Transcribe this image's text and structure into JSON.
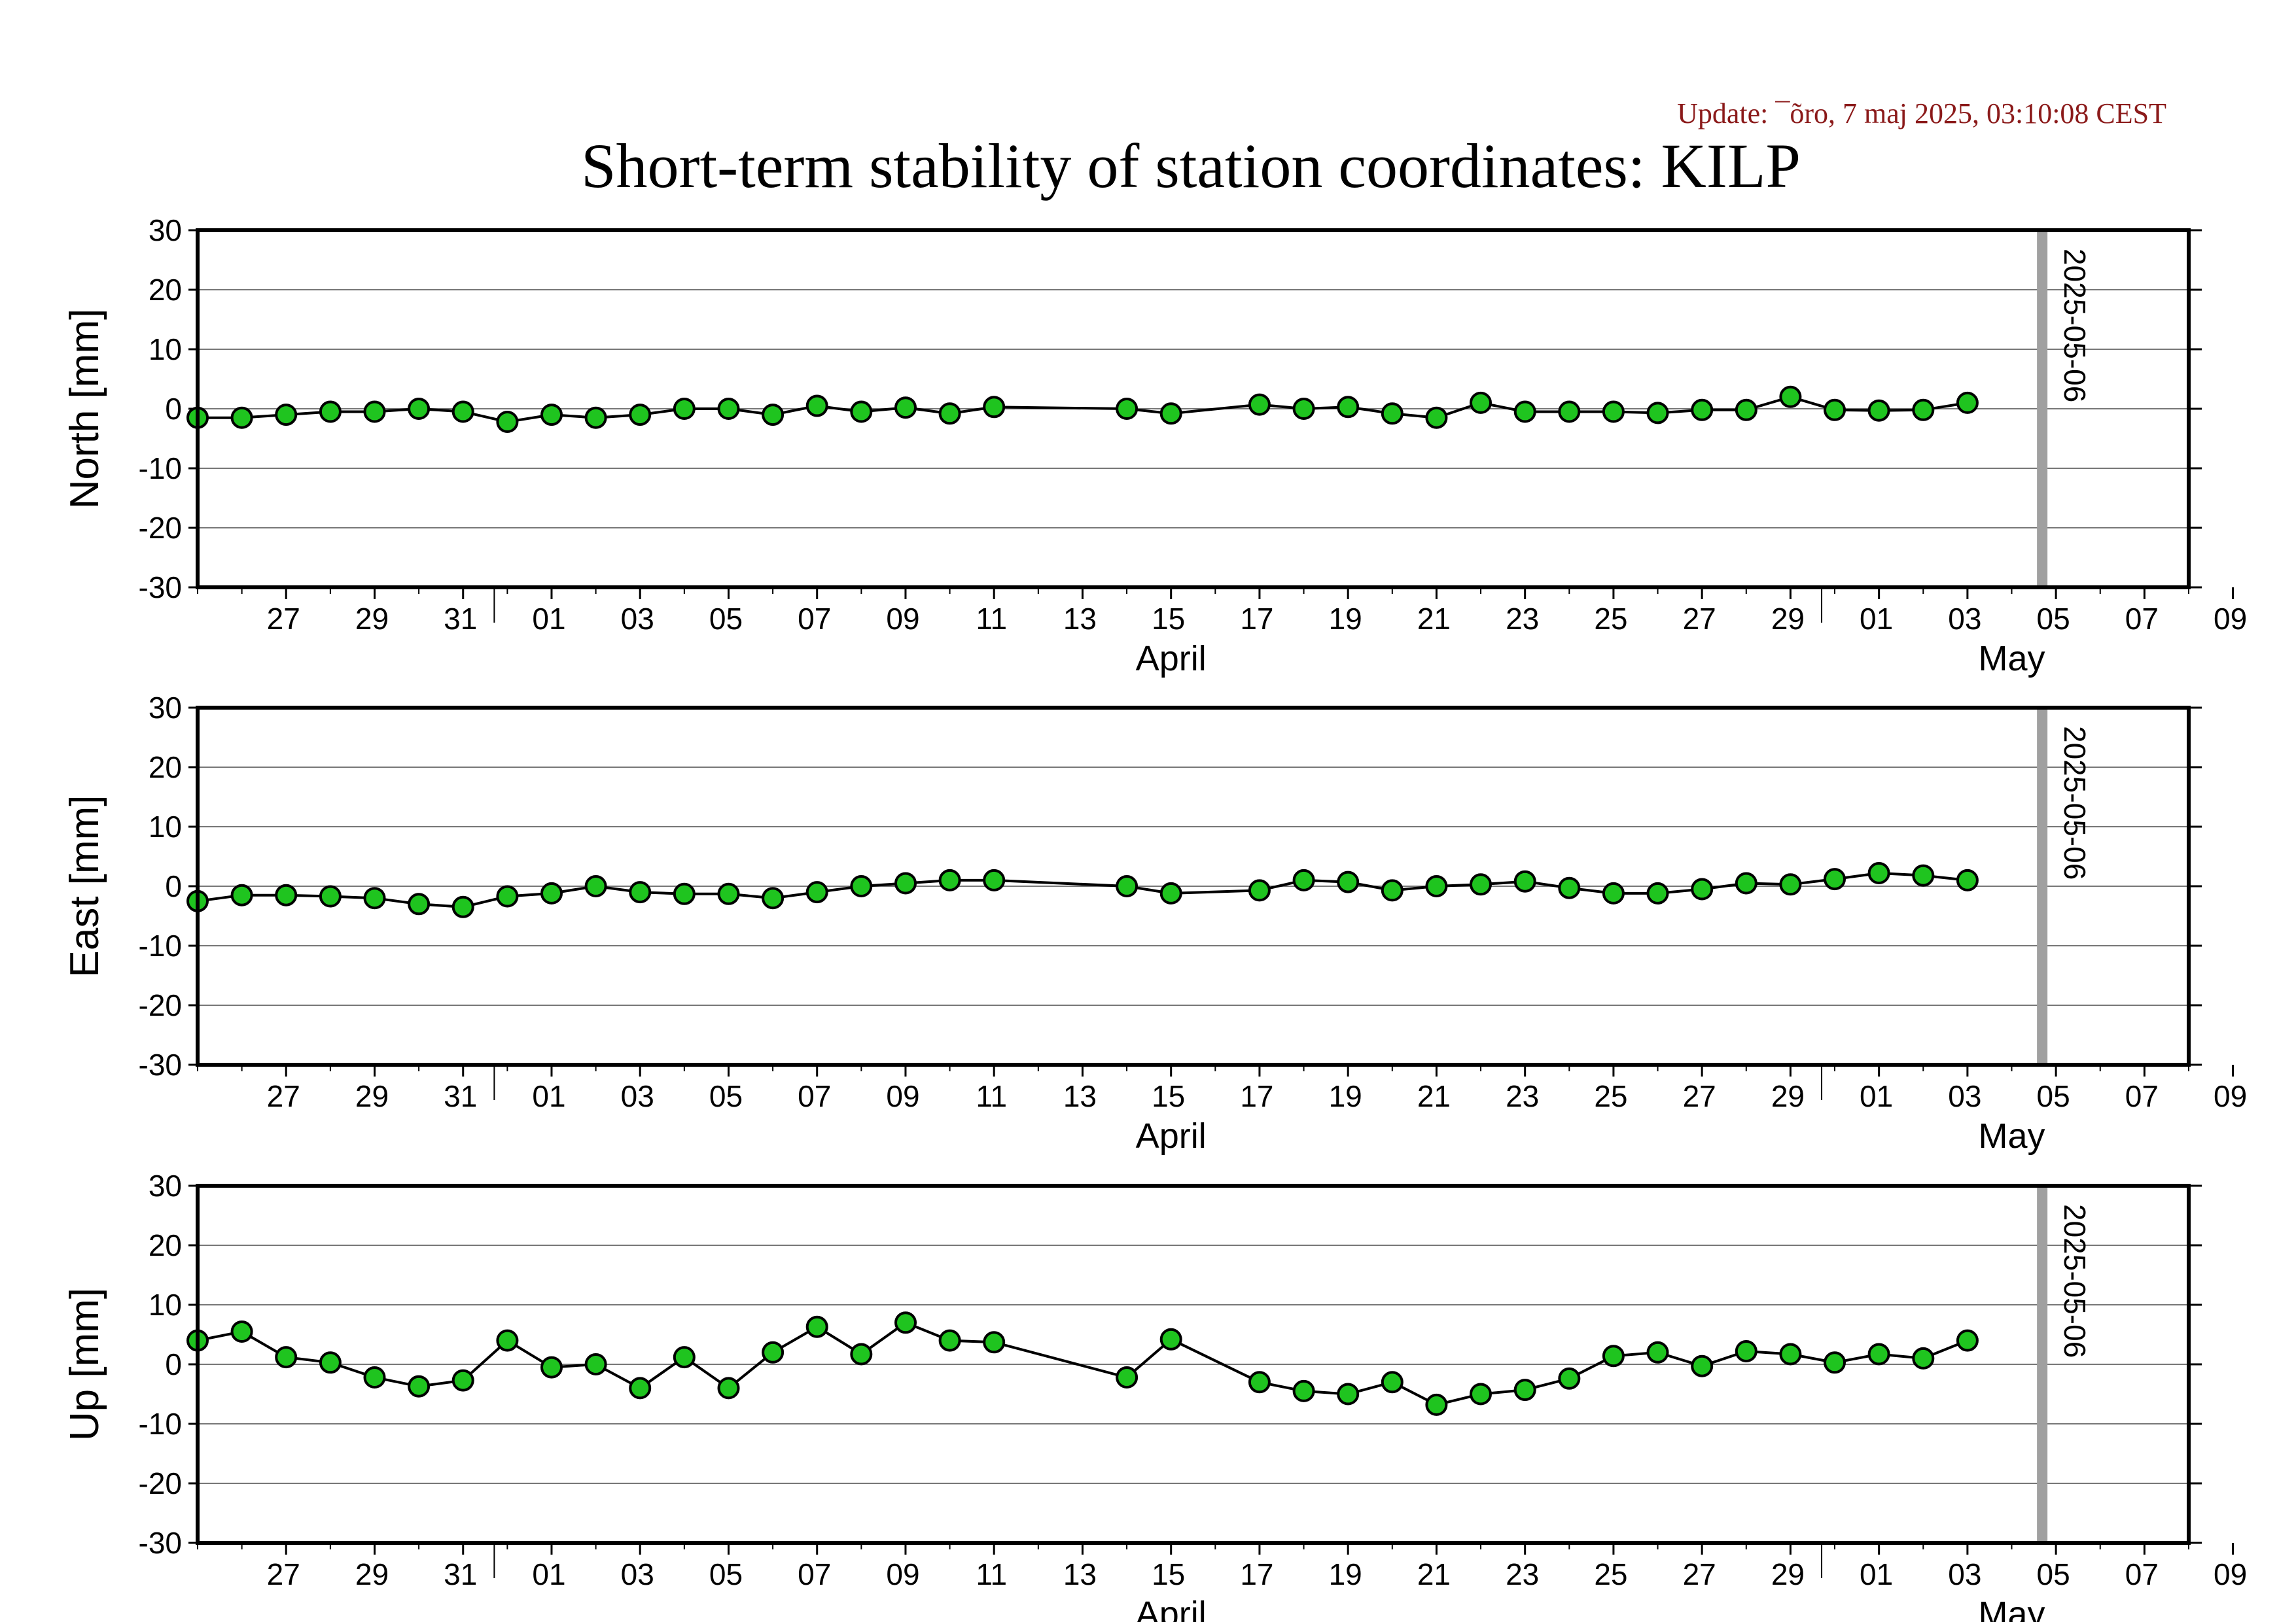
{
  "update_text": "Update: ¯õro, 7 maj 2025, 03:10:08 CEST",
  "title": "Short-term stability of station coordinates: KILP",
  "colors": {
    "marker_fill": "#1fc41f",
    "marker_edge": "#000000",
    "line": "#000000",
    "grid": "#777777",
    "date_marker": "#a0a0a0",
    "update_text": "#8b1a1a"
  },
  "chart_data": [
    {
      "type": "line",
      "ylabel": "North [mm]",
      "ylim": [
        -30,
        30
      ],
      "yticks": [
        30,
        20,
        10,
        0,
        -10,
        -20,
        -30
      ],
      "grid": true,
      "x_range": [
        "2025-03-25",
        "2025-05-09"
      ],
      "x_tick_labels": [
        "27",
        "29",
        "31",
        "01",
        "03",
        "05",
        "07",
        "09",
        "11",
        "13",
        "15",
        "17",
        "19",
        "21",
        "23",
        "25",
        "27",
        "29",
        "01",
        "03",
        "05",
        "07",
        "09"
      ],
      "month_labels": [
        "April",
        "May"
      ],
      "marker_date_label": "2025-05-06",
      "series": [
        {
          "x": [
            "2025-03-25",
            "2025-03-26",
            "2025-03-27",
            "2025-03-28",
            "2025-03-29",
            "2025-03-30",
            "2025-03-31",
            "2025-04-01",
            "2025-04-02",
            "2025-04-03",
            "2025-04-04",
            "2025-04-05",
            "2025-04-06",
            "2025-04-07",
            "2025-04-08",
            "2025-04-09",
            "2025-04-10",
            "2025-04-11",
            "2025-04-12",
            "2025-04-15",
            "2025-04-16",
            "2025-04-18",
            "2025-04-19",
            "2025-04-20",
            "2025-04-21",
            "2025-04-22",
            "2025-04-23",
            "2025-04-24",
            "2025-04-25",
            "2025-04-26",
            "2025-04-27",
            "2025-04-28",
            "2025-04-29",
            "2025-04-30",
            "2025-05-01",
            "2025-05-02",
            "2025-05-03",
            "2025-05-04"
          ],
          "values": [
            -1.5,
            -1.5,
            -1,
            -0.5,
            -0.5,
            0,
            -0.5,
            -2.2,
            -1,
            -1.5,
            -1,
            0,
            0,
            -1,
            0.5,
            -0.5,
            0.2,
            -0.8,
            0.3,
            0,
            -0.8,
            0.7,
            0,
            0.3,
            -0.8,
            -1.5,
            1,
            -0.5,
            -0.5,
            -0.5,
            -0.7,
            -0.2,
            -0.2,
            2,
            -0.2,
            -0.3,
            -0.2,
            1
          ]
        }
      ]
    },
    {
      "type": "line",
      "ylabel": "East [mm]",
      "ylim": [
        -30,
        30
      ],
      "yticks": [
        30,
        20,
        10,
        0,
        -10,
        -20,
        -30
      ],
      "grid": true,
      "x_range": [
        "2025-03-25",
        "2025-05-09"
      ],
      "x_tick_labels": [
        "27",
        "29",
        "31",
        "01",
        "03",
        "05",
        "07",
        "09",
        "11",
        "13",
        "15",
        "17",
        "19",
        "21",
        "23",
        "25",
        "27",
        "29",
        "01",
        "03",
        "05",
        "07",
        "09"
      ],
      "month_labels": [
        "April",
        "May"
      ],
      "marker_date_label": "2025-05-06",
      "series": [
        {
          "x": [
            "2025-03-25",
            "2025-03-26",
            "2025-03-27",
            "2025-03-28",
            "2025-03-29",
            "2025-03-30",
            "2025-03-31",
            "2025-04-01",
            "2025-04-02",
            "2025-04-03",
            "2025-04-04",
            "2025-04-05",
            "2025-04-06",
            "2025-04-07",
            "2025-04-08",
            "2025-04-09",
            "2025-04-10",
            "2025-04-11",
            "2025-04-12",
            "2025-04-15",
            "2025-04-16",
            "2025-04-18",
            "2025-04-19",
            "2025-04-20",
            "2025-04-21",
            "2025-04-22",
            "2025-04-23",
            "2025-04-24",
            "2025-04-25",
            "2025-04-26",
            "2025-04-27",
            "2025-04-28",
            "2025-04-29",
            "2025-04-30",
            "2025-05-01",
            "2025-05-02",
            "2025-05-03",
            "2025-05-04"
          ],
          "values": [
            -2.5,
            -1.5,
            -1.5,
            -1.7,
            -2,
            -3,
            -3.5,
            -1.7,
            -1.2,
            0,
            -1,
            -1.3,
            -1.3,
            -2,
            -1,
            0,
            0.5,
            1,
            1,
            0,
            -1.2,
            -0.7,
            1,
            0.7,
            -0.7,
            0,
            0.3,
            0.8,
            -0.3,
            -1.2,
            -1.2,
            -0.5,
            0.5,
            0.3,
            1.2,
            2.2,
            1.8,
            1
          ]
        }
      ]
    },
    {
      "type": "line",
      "ylabel": "Up [mm]",
      "ylim": [
        -30,
        30
      ],
      "yticks": [
        30,
        20,
        10,
        0,
        -10,
        -20,
        -30
      ],
      "grid": true,
      "x_range": [
        "2025-03-25",
        "2025-05-09"
      ],
      "x_tick_labels": [
        "27",
        "29",
        "31",
        "01",
        "03",
        "05",
        "07",
        "09",
        "11",
        "13",
        "15",
        "17",
        "19",
        "21",
        "23",
        "25",
        "27",
        "29",
        "01",
        "03",
        "05",
        "07",
        "09"
      ],
      "month_labels": [
        "April",
        "May"
      ],
      "marker_date_label": "2025-05-06",
      "series": [
        {
          "x": [
            "2025-03-25",
            "2025-03-26",
            "2025-03-27",
            "2025-03-28",
            "2025-03-29",
            "2025-03-30",
            "2025-03-31",
            "2025-04-01",
            "2025-04-02",
            "2025-04-03",
            "2025-04-04",
            "2025-04-05",
            "2025-04-06",
            "2025-04-07",
            "2025-04-08",
            "2025-04-09",
            "2025-04-10",
            "2025-04-11",
            "2025-04-12",
            "2025-04-15",
            "2025-04-16",
            "2025-04-18",
            "2025-04-19",
            "2025-04-20",
            "2025-04-21",
            "2025-04-22",
            "2025-04-23",
            "2025-04-24",
            "2025-04-25",
            "2025-04-26",
            "2025-04-27",
            "2025-04-28",
            "2025-04-29",
            "2025-04-30",
            "2025-05-01",
            "2025-05-02",
            "2025-05-03",
            "2025-05-04"
          ],
          "values": [
            4,
            5.5,
            1.2,
            0.3,
            -2.2,
            -3.7,
            -2.7,
            4,
            -0.5,
            0,
            -4,
            1.2,
            -4,
            2,
            6.3,
            1.7,
            7,
            4,
            3.7,
            -2.2,
            4.2,
            -3,
            -4.5,
            -5,
            -3,
            -6.8,
            -5,
            -4.3,
            -2.4,
            1.4,
            2,
            -0.3,
            2.2,
            1.7,
            0.3,
            1.7,
            1,
            4
          ]
        }
      ]
    }
  ]
}
